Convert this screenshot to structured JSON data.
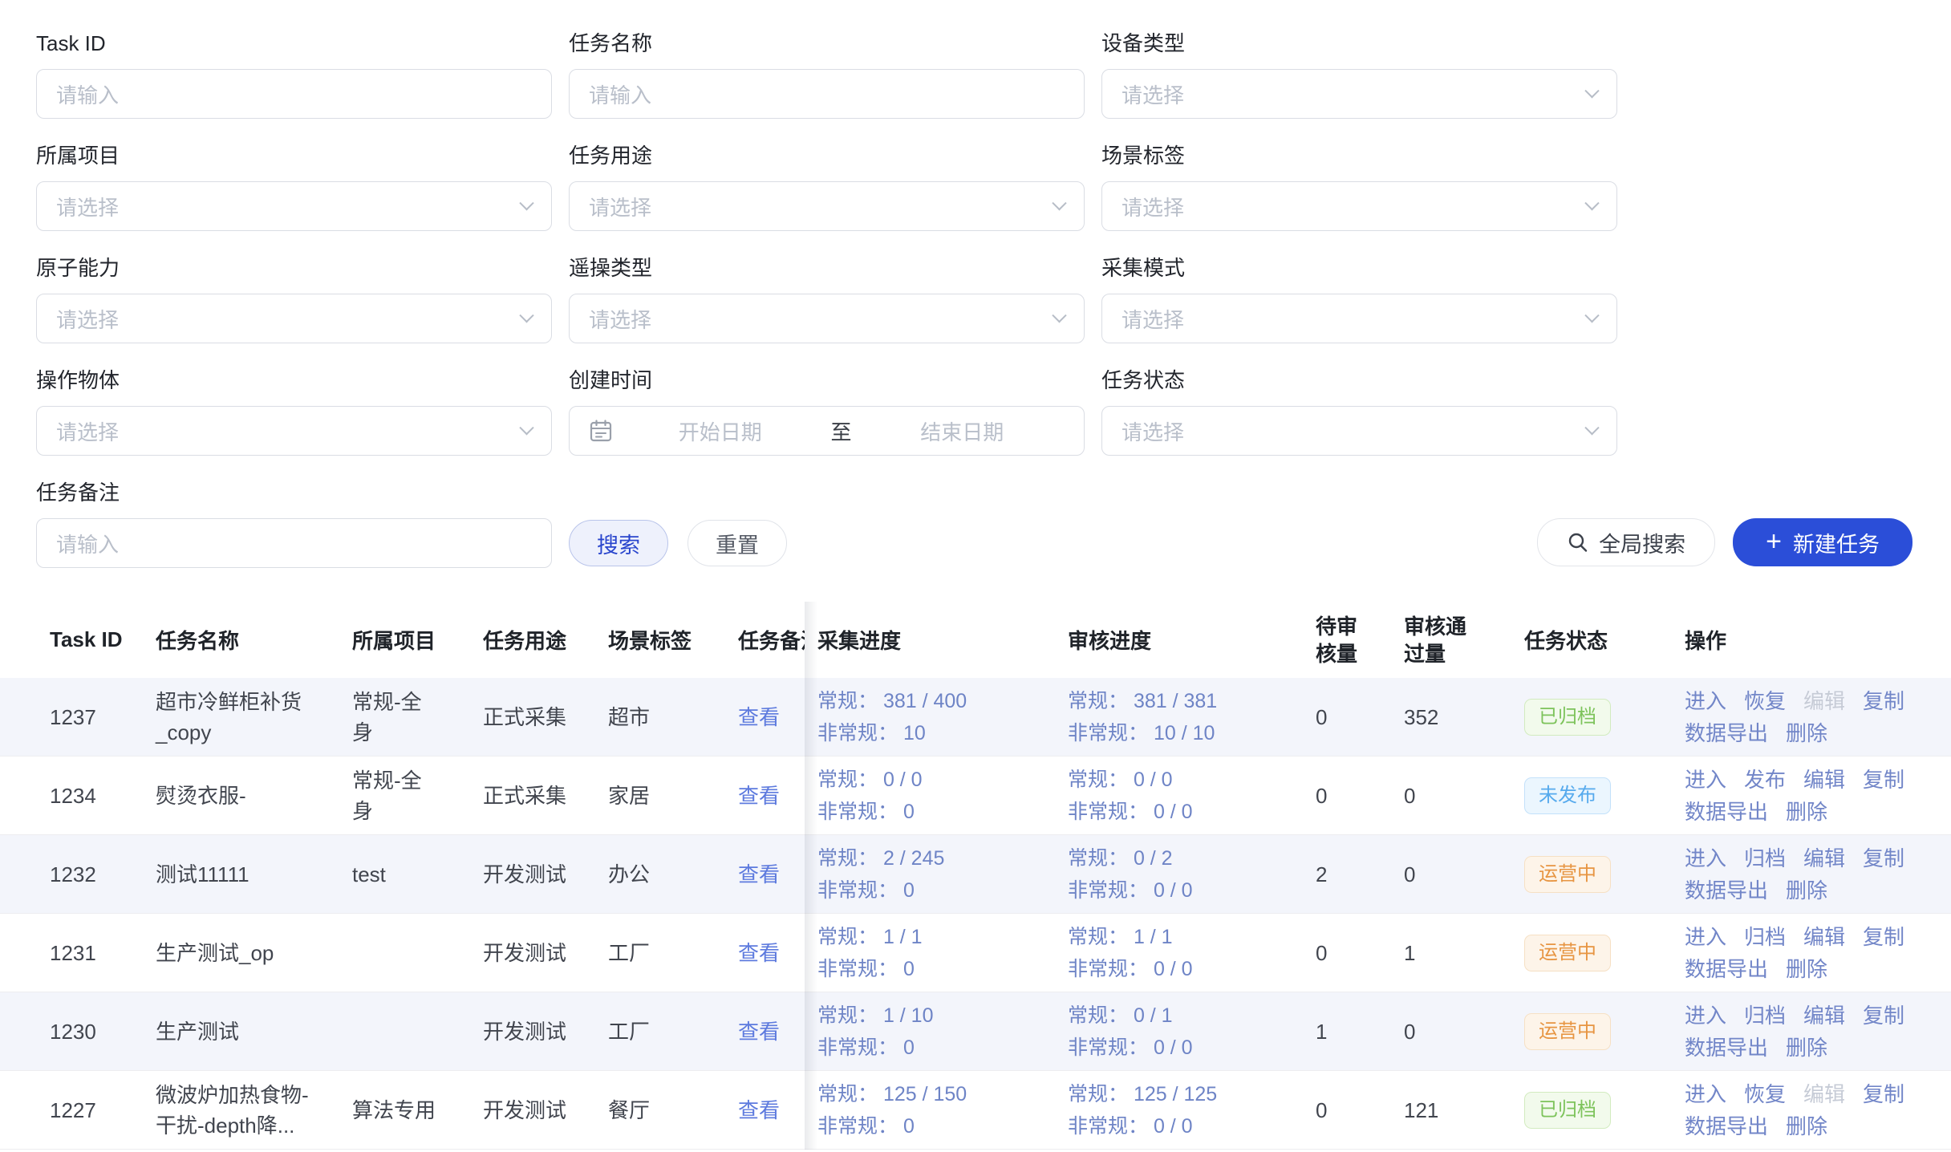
{
  "filters": {
    "fields": [
      {
        "label": "Task ID",
        "type": "input",
        "placeholder": "请输入"
      },
      {
        "label": "任务名称",
        "type": "input",
        "placeholder": "请输入"
      },
      {
        "label": "设备类型",
        "type": "select",
        "placeholder": "请选择"
      },
      {
        "label": "所属项目",
        "type": "select",
        "placeholder": "请选择"
      },
      {
        "label": "任务用途",
        "type": "select",
        "placeholder": "请选择"
      },
      {
        "label": "场景标签",
        "type": "select",
        "placeholder": "请选择"
      },
      {
        "label": "原子能力",
        "type": "select",
        "placeholder": "请选择"
      },
      {
        "label": "遥操类型",
        "type": "select",
        "placeholder": "请选择"
      },
      {
        "label": "采集模式",
        "type": "select",
        "placeholder": "请选择"
      },
      {
        "label": "操作物体",
        "type": "select",
        "placeholder": "请选择"
      },
      {
        "label": "创建时间",
        "type": "daterange",
        "start_placeholder": "开始日期",
        "separator": "至",
        "end_placeholder": "结束日期"
      },
      {
        "label": "任务状态",
        "type": "select",
        "placeholder": "请选择"
      },
      {
        "label": "任务备注",
        "type": "input",
        "placeholder": "请输入"
      }
    ],
    "search_label": "搜索",
    "reset_label": "重置"
  },
  "toolbar": {
    "global_search_label": "全局搜索",
    "new_task_label": "新建任务",
    "plus": "+"
  },
  "colors": {
    "primary": "#2b4ed8",
    "status_green": "#7dc35b",
    "status_blue": "#56aaed",
    "status_orange": "#e79542"
  },
  "table": {
    "columns": [
      "Task ID",
      "任务名称",
      "所属项目",
      "任务用途",
      "场景标签",
      "任务备注",
      "采集进度",
      "审核进度",
      "待审核量",
      "审核通过量",
      "任务状态",
      "操作"
    ],
    "rows": [
      {
        "task_id": "1237",
        "name": "超市冷鲜柜补货_copy",
        "project": "常规-全身",
        "purpose": "正式采集",
        "scene": "超市",
        "remark_action": "查看",
        "collect_line1": "常规： 381 / 400",
        "collect_line2": "非常规： 10",
        "review_line1": "常规： 381 / 381",
        "review_line2": "非常规： 10 / 10",
        "pending": "0",
        "passed": "352",
        "status": {
          "label": "已归档",
          "type": "green"
        },
        "actions": [
          {
            "label": "进入"
          },
          {
            "label": "恢复"
          },
          {
            "label": "编辑",
            "disabled": true
          },
          {
            "label": "复制"
          },
          {
            "label": "数据导出"
          },
          {
            "label": "删除"
          }
        ]
      },
      {
        "task_id": "1234",
        "name": "熨烫衣服-",
        "project": "常规-全身",
        "purpose": "正式采集",
        "scene": "家居",
        "remark_action": "查看",
        "collect_line1": "常规： 0 / 0",
        "collect_line2": "非常规： 0",
        "review_line1": "常规： 0 / 0",
        "review_line2": "非常规： 0 / 0",
        "pending": "0",
        "passed": "0",
        "status": {
          "label": "未发布",
          "type": "blue"
        },
        "actions": [
          {
            "label": "进入"
          },
          {
            "label": "发布"
          },
          {
            "label": "编辑"
          },
          {
            "label": "复制"
          },
          {
            "label": "数据导出"
          },
          {
            "label": "删除"
          }
        ]
      },
      {
        "task_id": "1232",
        "name": "测试11111",
        "project": "test",
        "purpose": "开发测试",
        "scene": "办公",
        "remark_action": "查看",
        "collect_line1": "常规： 2 / 245",
        "collect_line2": "非常规： 0",
        "review_line1": "常规： 0 / 2",
        "review_line2": "非常规： 0 / 0",
        "pending": "2",
        "passed": "0",
        "status": {
          "label": "运营中",
          "type": "orange"
        },
        "actions": [
          {
            "label": "进入"
          },
          {
            "label": "归档"
          },
          {
            "label": "编辑"
          },
          {
            "label": "复制"
          },
          {
            "label": "数据导出"
          },
          {
            "label": "删除"
          }
        ]
      },
      {
        "task_id": "1231",
        "name": "生产测试_op",
        "project": "",
        "purpose": "开发测试",
        "scene": "工厂",
        "remark_action": "查看",
        "collect_line1": "常规： 1 / 1",
        "collect_line2": "非常规： 0",
        "review_line1": "常规： 1 / 1",
        "review_line2": "非常规： 0 / 0",
        "pending": "0",
        "passed": "1",
        "status": {
          "label": "运营中",
          "type": "orange"
        },
        "actions": [
          {
            "label": "进入"
          },
          {
            "label": "归档"
          },
          {
            "label": "编辑"
          },
          {
            "label": "复制"
          },
          {
            "label": "数据导出"
          },
          {
            "label": "删除"
          }
        ]
      },
      {
        "task_id": "1230",
        "name": "生产测试",
        "project": "",
        "purpose": "开发测试",
        "scene": "工厂",
        "remark_action": "查看",
        "collect_line1": "常规： 1 / 10",
        "collect_line2": "非常规： 0",
        "review_line1": "常规： 0 / 1",
        "review_line2": "非常规： 0 / 0",
        "pending": "1",
        "passed": "0",
        "status": {
          "label": "运营中",
          "type": "orange"
        },
        "actions": [
          {
            "label": "进入"
          },
          {
            "label": "归档"
          },
          {
            "label": "编辑"
          },
          {
            "label": "复制"
          },
          {
            "label": "数据导出"
          },
          {
            "label": "删除"
          }
        ]
      },
      {
        "task_id": "1227",
        "name": "微波炉加热食物-干扰-depth降...",
        "project": "算法专用",
        "purpose": "开发测试",
        "scene": "餐厅",
        "remark_action": "查看",
        "collect_line1": "常规： 125 / 150",
        "collect_line2": "非常规： 0",
        "review_line1": "常规： 125 / 125",
        "review_line2": "非常规： 0 / 0",
        "pending": "0",
        "passed": "121",
        "status": {
          "label": "已归档",
          "type": "green"
        },
        "actions": [
          {
            "label": "进入"
          },
          {
            "label": "恢复"
          },
          {
            "label": "编辑",
            "disabled": true
          },
          {
            "label": "复制"
          },
          {
            "label": "数据导出"
          },
          {
            "label": "删除"
          }
        ]
      }
    ]
  }
}
